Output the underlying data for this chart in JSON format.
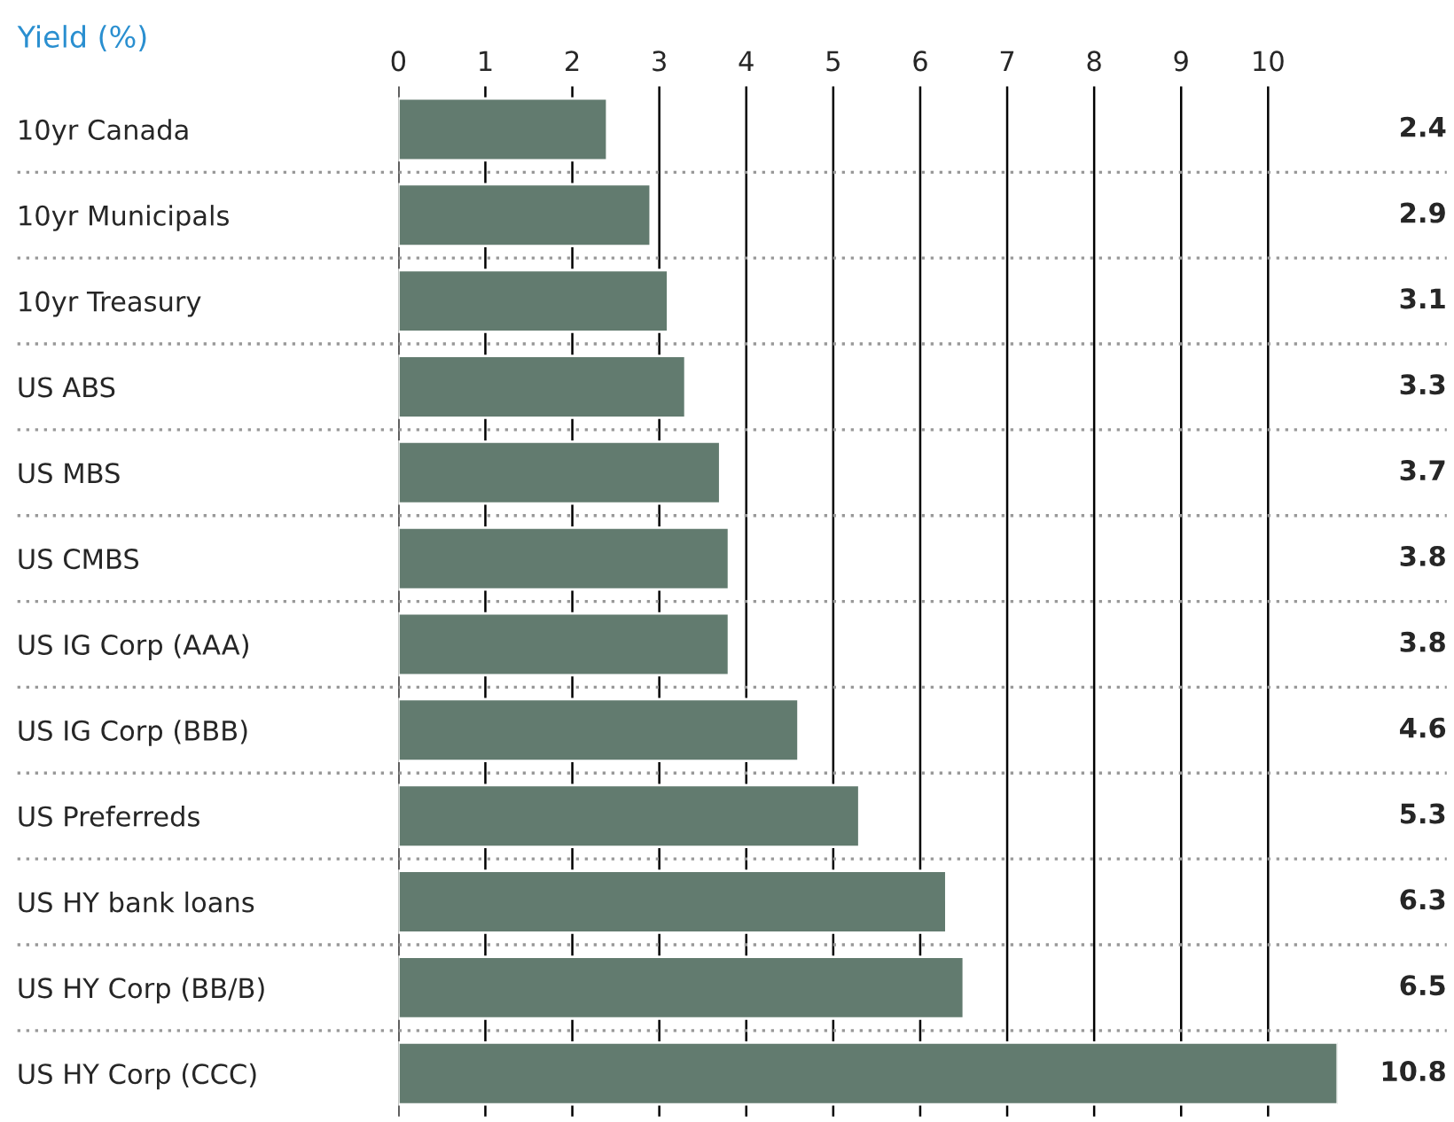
{
  "chart_data": {
    "type": "bar",
    "orientation": "horizontal",
    "title": "Yield (%)",
    "categories": [
      "10yr Canada",
      "10yr Municipals",
      "10yr Treasury",
      "US ABS",
      "US MBS",
      "US CMBS",
      "US IG Corp (AAA)",
      "US IG Corp (BBB)",
      "US Preferreds",
      "US HY bank loans",
      "US HY Corp (BB/B)",
      "US HY Corp (CCC)"
    ],
    "values": [
      2.4,
      2.9,
      3.1,
      3.3,
      3.7,
      3.8,
      3.8,
      4.6,
      5.3,
      6.3,
      6.5,
      10.8
    ],
    "color": "#627b6f",
    "xlim": [
      0,
      10.8
    ],
    "xticks": [
      0,
      1,
      2,
      3,
      4,
      5,
      6,
      7,
      8,
      9,
      10
    ],
    "grid": "x",
    "data_labels": true,
    "legend": false
  }
}
